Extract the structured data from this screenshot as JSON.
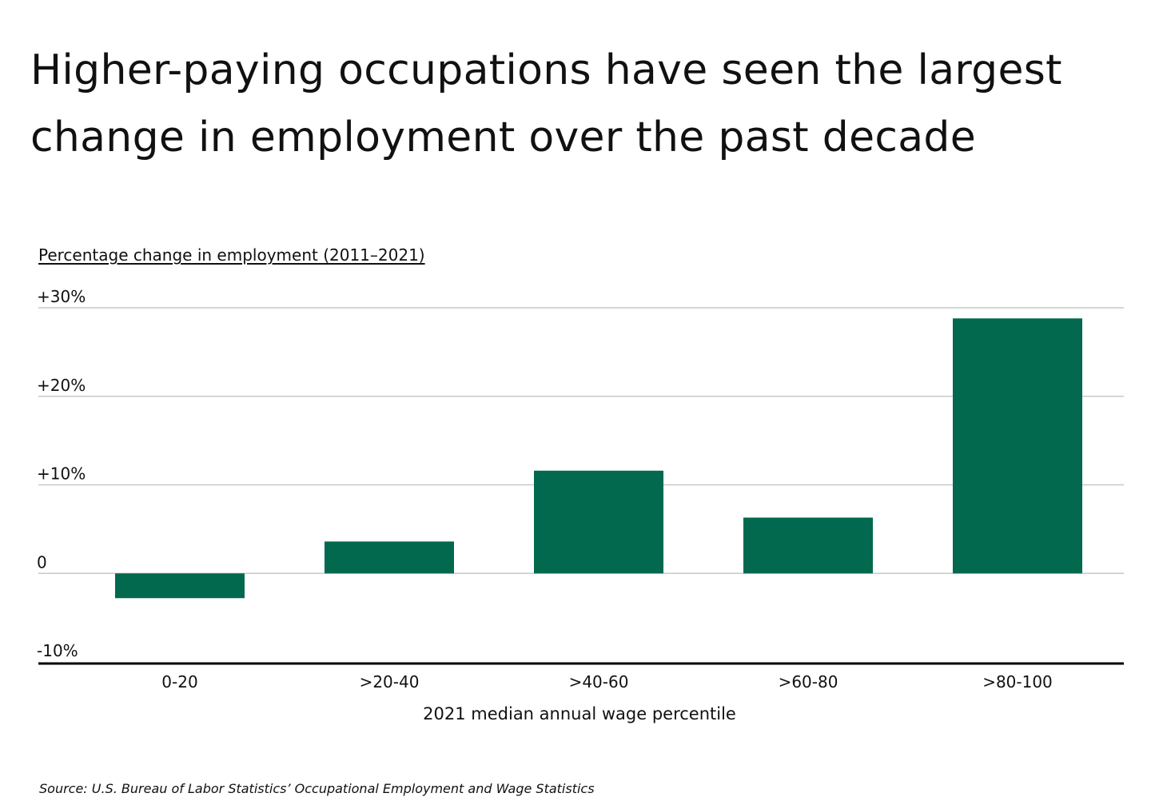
{
  "chart_data": {
    "type": "bar",
    "title": "Higher-paying occupations have seen the largest change in employment over the past decade",
    "ylabel": "Percentage change in employment (2011–2021)",
    "xlabel": "2021 median annual wage percentile",
    "categories": [
      "0-20",
      ">20-40",
      ">40-60",
      ">60-80",
      ">80-100"
    ],
    "values": [
      -2.8,
      3.6,
      11.6,
      6.3,
      28.8
    ],
    "ylim": [
      -10,
      30
    ],
    "yticks": [
      30,
      20,
      10,
      0,
      -10
    ],
    "ytick_labels": [
      "+30%",
      "+20%",
      "+10%",
      "0",
      "-10%"
    ],
    "grid": true,
    "legend": "none",
    "bar_color": "#02694f",
    "source": "Source:  U.S. Bureau of Labor Statistics’ Occupational Employment and Wage Statistics"
  }
}
